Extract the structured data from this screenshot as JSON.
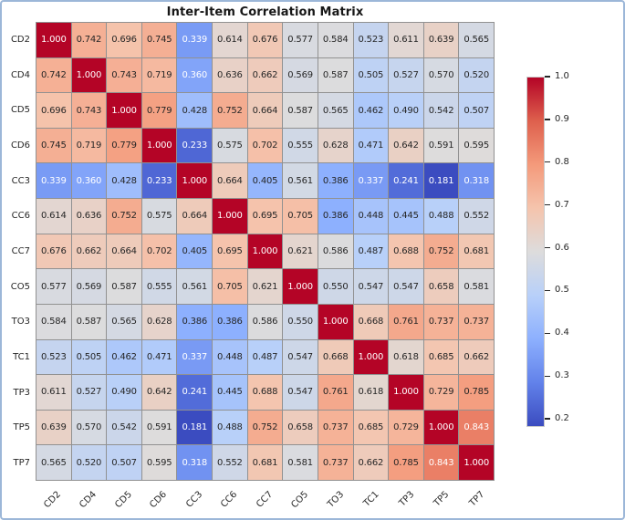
{
  "frame": {
    "border_color": "#9cb7d8",
    "background": "#ffffff"
  },
  "chart_data": {
    "type": "heatmap",
    "title": "Inter-Item Correlation Matrix",
    "items": [
      "CD2",
      "CD4",
      "CD5",
      "CD6",
      "CC3",
      "CC6",
      "CC7",
      "CO5",
      "TO3",
      "TC1",
      "TP3",
      "TP5",
      "TP7"
    ],
    "matrix": [
      [
        1.0,
        0.742,
        0.696,
        0.745,
        0.339,
        0.614,
        0.676,
        0.577,
        0.584,
        0.523,
        0.611,
        0.639,
        0.565
      ],
      [
        0.742,
        1.0,
        0.743,
        0.719,
        0.36,
        0.636,
        0.662,
        0.569,
        0.587,
        0.505,
        0.527,
        0.57,
        0.52
      ],
      [
        0.696,
        0.743,
        1.0,
        0.779,
        0.428,
        0.752,
        0.664,
        0.587,
        0.565,
        0.462,
        0.49,
        0.542,
        0.507
      ],
      [
        0.745,
        0.719,
        0.779,
        1.0,
        0.233,
        0.575,
        0.702,
        0.555,
        0.628,
        0.471,
        0.642,
        0.591,
        0.595
      ],
      [
        0.339,
        0.36,
        0.428,
        0.233,
        1.0,
        0.664,
        0.405,
        0.561,
        0.386,
        0.337,
        0.241,
        0.181,
        0.318
      ],
      [
        0.614,
        0.636,
        0.752,
        0.575,
        0.664,
        1.0,
        0.695,
        0.705,
        0.386,
        0.448,
        0.445,
        0.488,
        0.552
      ],
      [
        0.676,
        0.662,
        0.664,
        0.702,
        0.405,
        0.695,
        1.0,
        0.621,
        0.586,
        0.487,
        0.688,
        0.752,
        0.681
      ],
      [
        0.577,
        0.569,
        0.587,
        0.555,
        0.561,
        0.705,
        0.621,
        1.0,
        0.55,
        0.547,
        0.547,
        0.658,
        0.581
      ],
      [
        0.584,
        0.587,
        0.565,
        0.628,
        0.386,
        0.386,
        0.586,
        0.55,
        1.0,
        0.668,
        0.761,
        0.737,
        0.737
      ],
      [
        0.523,
        0.505,
        0.462,
        0.471,
        0.337,
        0.448,
        0.487,
        0.547,
        0.668,
        1.0,
        0.618,
        0.685,
        0.662
      ],
      [
        0.611,
        0.527,
        0.49,
        0.642,
        0.241,
        0.445,
        0.688,
        0.547,
        0.761,
        0.618,
        1.0,
        0.729,
        0.785
      ],
      [
        0.639,
        0.57,
        0.542,
        0.591,
        0.181,
        0.488,
        0.752,
        0.658,
        0.737,
        0.685,
        0.729,
        1.0,
        0.843
      ],
      [
        0.565,
        0.52,
        0.507,
        0.595,
        0.318,
        0.552,
        0.681,
        0.581,
        0.737,
        0.662,
        0.785,
        0.843,
        1.0
      ]
    ],
    "value_decimals": 3,
    "vmin": 0.181,
    "vmax": 1.0,
    "colormap": "coolwarm",
    "colormap_anchors": [
      [
        0.0,
        [
          59,
          76,
          192
        ]
      ],
      [
        0.125,
        [
          98,
          130,
          234
        ]
      ],
      [
        0.25,
        [
          141,
          176,
          254
        ]
      ],
      [
        0.375,
        [
          184,
          208,
          249
        ]
      ],
      [
        0.5,
        [
          221,
          220,
          220
        ]
      ],
      [
        0.625,
        [
          245,
          196,
          173
        ]
      ],
      [
        0.75,
        [
          244,
          154,
          123
        ]
      ],
      [
        0.875,
        [
          222,
          96,
          77
        ]
      ],
      [
        1.0,
        [
          180,
          4,
          38
        ]
      ]
    ],
    "grid_line_color": "#919191",
    "annotation_text": {
      "light": "#ffffff",
      "dark": "#262626",
      "luminance_threshold": 0.408
    },
    "colorbar": {
      "position": "right",
      "ticks": [
        1.0,
        0.9,
        0.8,
        0.7,
        0.6,
        0.5,
        0.4,
        0.3,
        0.2
      ],
      "tick_decimals": 1
    },
    "legend": "none",
    "x_tick_rotation_deg": 45
  }
}
